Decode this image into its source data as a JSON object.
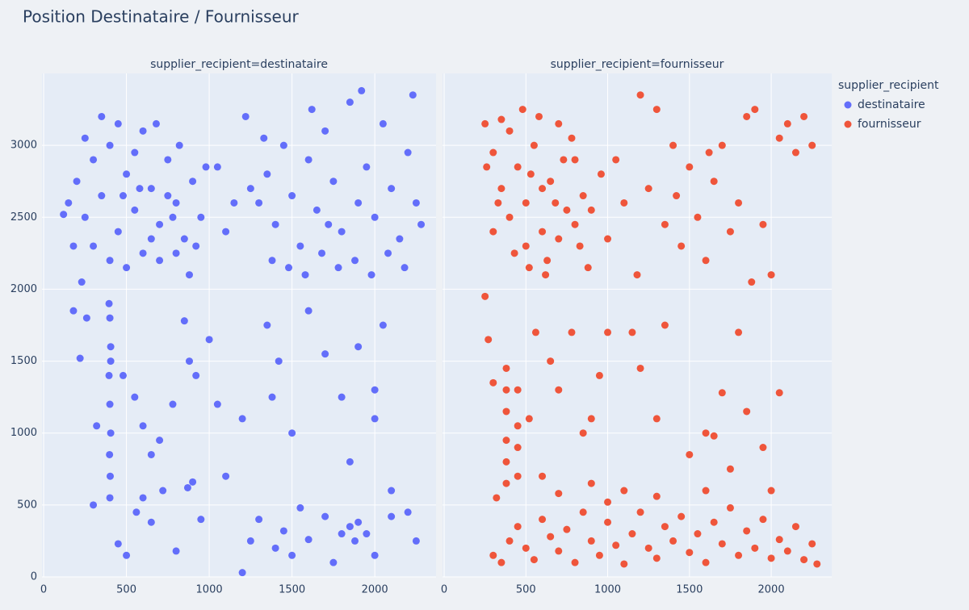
{
  "title": "Position Destinataire / Fournisseur",
  "legend": {
    "title": "supplier_recipient",
    "position": "right"
  },
  "chart_data": [
    {
      "type": "scatter",
      "title": "supplier_recipient=destinataire",
      "xlim": [
        -10,
        2370
      ],
      "ylim": [
        0,
        3500
      ],
      "xticks": [
        0,
        500,
        1000,
        1500,
        2000
      ],
      "yticks": [
        0,
        500,
        1000,
        1500,
        2000,
        2500,
        3000
      ],
      "ytick_labels": true,
      "grid": true,
      "series": [
        {
          "name": "destinataire",
          "color": "#636efa",
          "x": [
            150,
            200,
            250,
            300,
            350,
            400,
            450,
            500,
            550,
            600,
            650,
            700,
            750,
            800,
            850,
            900,
            950,
            300,
            400,
            500,
            600,
            700,
            800,
            880,
            250,
            350,
            450,
            550,
            650,
            750,
            820,
            920,
            120,
            180,
            230,
            480,
            580,
            680,
            780,
            980,
            1300,
            1350,
            1400,
            1450,
            1500,
            1550,
            1600,
            1650,
            1700,
            1750,
            1800,
            1850,
            1900,
            1950,
            2000,
            2050,
            2100,
            2150,
            2200,
            2250,
            1380,
            1480,
            1580,
            1680,
            1780,
            1880,
            1980,
            2080,
            2180,
            2280,
            1330,
            1620,
            1920,
            2230,
            1720,
            1050,
            1150,
            1220,
            1100,
            1250,
            400,
            405,
            395,
            400,
            405,
            398,
            402,
            400,
            395,
            405,
            180,
            220,
            260,
            320,
            480,
            550,
            600,
            650,
            700,
            780,
            850,
            880,
            920,
            1000,
            1050,
            1100,
            1200,
            1350,
            1380,
            1420,
            1500,
            1600,
            1800,
            1850,
            2000,
            2000,
            2050,
            1700,
            1900,
            2100,
            300,
            450,
            500,
            560,
            600,
            650,
            720,
            800,
            870,
            900,
            950,
            1200,
            1250,
            1300,
            1400,
            1450,
            1500,
            1600,
            1700,
            1750,
            1800,
            1850,
            1880,
            1900,
            1950,
            2000,
            2100,
            2200,
            2250,
            1550
          ],
          "values": [
            2600,
            2750,
            2500,
            2900,
            2650,
            3000,
            2400,
            2800,
            2550,
            3100,
            2700,
            2450,
            2900,
            2600,
            2350,
            2750,
            2500,
            2300,
            2200,
            2150,
            2250,
            2200,
            2250,
            2100,
            3050,
            3200,
            3150,
            2950,
            2350,
            2650,
            3000,
            2300,
            2520,
            2300,
            2050,
            2650,
            2700,
            3150,
            2500,
            2850,
            2600,
            2800,
            2450,
            3000,
            2650,
            2300,
            2900,
            2550,
            3100,
            2750,
            2400,
            3300,
            2600,
            2850,
            2500,
            3150,
            2700,
            2350,
            2950,
            2600,
            2200,
            2150,
            2100,
            2250,
            2150,
            2200,
            2100,
            2250,
            2150,
            2450,
            3050,
            3250,
            3380,
            3350,
            2450,
            2850,
            2600,
            3200,
            2400,
            2700,
            1800,
            1600,
            1400,
            1200,
            1000,
            850,
            700,
            550,
            1900,
            1500,
            1850,
            1520,
            1800,
            1050,
            1400,
            1250,
            1050,
            850,
            950,
            1200,
            1780,
            1500,
            1400,
            1650,
            1200,
            700,
            1100,
            1750,
            1250,
            1500,
            1000,
            1850,
            1250,
            800,
            1300,
            1100,
            1750,
            1550,
            1600,
            600,
            500,
            230,
            150,
            450,
            550,
            380,
            600,
            180,
            620,
            660,
            400,
            30,
            250,
            400,
            200,
            320,
            150,
            260,
            420,
            100,
            300,
            350,
            250,
            380,
            300,
            150,
            420,
            450,
            250,
            480
          ]
        }
      ]
    },
    {
      "type": "scatter",
      "title": "supplier_recipient=fournisseur",
      "xlim": [
        -10,
        2370
      ],
      "ylim": [
        0,
        3500
      ],
      "xticks": [
        0,
        500,
        1000,
        1500,
        2000
      ],
      "yticks": [
        0,
        500,
        1000,
        1500,
        2000,
        2500,
        3000
      ],
      "ytick_labels": false,
      "grid": true,
      "series": [
        {
          "name": "fournisseur",
          "color": "#ef553b",
          "x": [
            250,
            300,
            350,
            400,
            450,
            500,
            550,
            600,
            650,
            700,
            750,
            800,
            850,
            300,
            400,
            500,
            600,
            700,
            800,
            880,
            480,
            580,
            680,
            780,
            330,
            430,
            530,
            630,
            730,
            830,
            900,
            350,
            620,
            520,
            260,
            1000,
            1050,
            1100,
            1200,
            1250,
            1300,
            1350,
            1400,
            1450,
            1500,
            1550,
            1600,
            1650,
            1700,
            1750,
            1800,
            1850,
            1900,
            1950,
            2000,
            2050,
            2100,
            2150,
            2200,
            2250,
            1880,
            1620,
            1420,
            1180,
            960,
            380,
            380,
            380,
            380,
            380,
            380,
            450,
            450,
            450,
            450,
            250,
            270,
            300,
            320,
            520,
            560,
            600,
            650,
            700,
            850,
            900,
            900,
            950,
            1000,
            1150,
            1200,
            1300,
            1350,
            1500,
            1600,
            1650,
            1700,
            1800,
            1850,
            2050,
            2000,
            1750,
            1100,
            780,
            1950,
            300,
            350,
            400,
            450,
            500,
            550,
            600,
            650,
            700,
            750,
            800,
            850,
            900,
            950,
            1000,
            1050,
            1100,
            1150,
            1200,
            1250,
            1300,
            1350,
            1400,
            1450,
            1500,
            1550,
            1600,
            1650,
            1700,
            1750,
            1800,
            1850,
            1900,
            1950,
            2000,
            2050,
            2100,
            2150,
            2200,
            2250,
            700,
            1000,
            1300,
            1600,
            2280
          ],
          "values": [
            3150,
            2950,
            2700,
            3100,
            2850,
            2600,
            3000,
            2400,
            2750,
            3150,
            2550,
            2900,
            2650,
            2400,
            2500,
            2300,
            2700,
            2350,
            2450,
            2150,
            3250,
            3200,
            2600,
            3050,
            2600,
            2250,
            2800,
            2200,
            2900,
            2300,
            2550,
            3180,
            2100,
            2150,
            2850,
            2350,
            2900,
            2600,
            3350,
            2700,
            3250,
            2450,
            3000,
            2300,
            2850,
            2500,
            2200,
            2750,
            3000,
            2400,
            2600,
            3200,
            3250,
            2450,
            2100,
            3050,
            3150,
            2950,
            3200,
            3000,
            2050,
            2950,
            2650,
            2100,
            2800,
            1450,
            1300,
            1150,
            950,
            800,
            650,
            1300,
            1050,
            900,
            700,
            1950,
            1650,
            1350,
            550,
            1100,
            1700,
            700,
            1500,
            1300,
            1000,
            1100,
            650,
            1400,
            1700,
            1700,
            1450,
            1100,
            1750,
            850,
            1000,
            980,
            1280,
            1700,
            1150,
            1280,
            600,
            750,
            600,
            1700,
            900,
            150,
            100,
            250,
            350,
            200,
            120,
            400,
            280,
            180,
            330,
            100,
            450,
            250,
            150,
            380,
            220,
            90,
            300,
            450,
            200,
            130,
            350,
            250,
            420,
            170,
            300,
            100,
            380,
            230,
            480,
            150,
            320,
            200,
            400,
            130,
            260,
            180,
            350,
            120,
            230,
            580,
            520,
            560,
            600,
            90
          ]
        }
      ]
    }
  ]
}
